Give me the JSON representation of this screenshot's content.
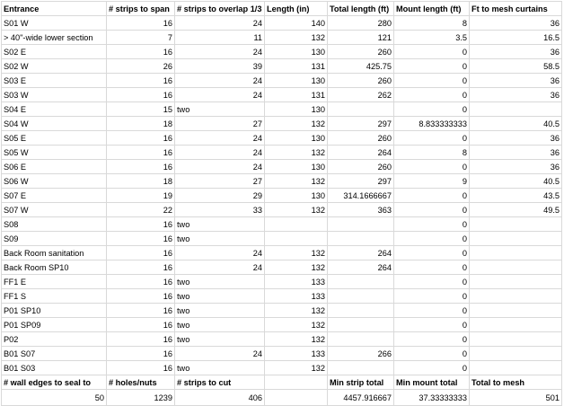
{
  "sheet": {
    "header": [
      "Entrance",
      "# strips to span",
      "# strips to overlap 1/3",
      "Length (in)",
      "Total length (ft)",
      "Mount length (ft)",
      "Ft to mesh curtains"
    ],
    "rows": [
      [
        "S01 W",
        "16",
        "24",
        "140",
        "280",
        "8",
        "36"
      ],
      [
        "> 40\"-wide lower section",
        "7",
        "11",
        "132",
        "121",
        "3.5",
        "16.5"
      ],
      [
        "S02 E",
        "16",
        "24",
        "130",
        "260",
        "0",
        "36"
      ],
      [
        "S02 W",
        "26",
        "39",
        "131",
        "425.75",
        "0",
        "58.5"
      ],
      [
        "S03 E",
        "16",
        "24",
        "130",
        "260",
        "0",
        "36"
      ],
      [
        "S03 W",
        "16",
        "24",
        "131",
        "262",
        "0",
        "36"
      ],
      [
        "S04 E",
        "15",
        "two",
        "130",
        "",
        "0",
        ""
      ],
      [
        "S04 W",
        "18",
        "27",
        "132",
        "297",
        "8.833333333",
        "40.5"
      ],
      [
        "S05 E",
        "16",
        "24",
        "130",
        "260",
        "0",
        "36"
      ],
      [
        "S05 W",
        "16",
        "24",
        "132",
        "264",
        "8",
        "36"
      ],
      [
        "S06 E",
        "16",
        "24",
        "130",
        "260",
        "0",
        "36"
      ],
      [
        "S06 W",
        "18",
        "27",
        "132",
        "297",
        "9",
        "40.5"
      ],
      [
        "S07 E",
        "19",
        "29",
        "130",
        "314.1666667",
        "0",
        "43.5"
      ],
      [
        "S07 W",
        "22",
        "33",
        "132",
        "363",
        "0",
        "49.5"
      ],
      [
        "S08",
        "16",
        "two",
        "",
        "",
        "0",
        ""
      ],
      [
        "S09",
        "16",
        "two",
        "",
        "",
        "0",
        ""
      ],
      [
        "Back Room sanitation",
        "16",
        "24",
        "132",
        "264",
        "0",
        ""
      ],
      [
        "Back Room SP10",
        "16",
        "24",
        "132",
        "264",
        "0",
        ""
      ],
      [
        "FF1 E",
        "16",
        "two",
        "133",
        "",
        "0",
        ""
      ],
      [
        "FF1 S",
        "16",
        "two",
        "133",
        "",
        "0",
        ""
      ],
      [
        "P01 SP10",
        "16",
        "two",
        "132",
        "",
        "0",
        ""
      ],
      [
        "P01 SP09",
        "16",
        "two",
        "132",
        "",
        "0",
        ""
      ],
      [
        "P02",
        "16",
        "two",
        "132",
        "",
        "0",
        ""
      ],
      [
        "B01 S07",
        "16",
        "24",
        "133",
        "266",
        "0",
        ""
      ],
      [
        "B01 S03",
        "16",
        "two",
        "132",
        "",
        "0",
        ""
      ]
    ],
    "footer_labels": [
      "# wall edges to seal to",
      "# holes/nuts",
      "# strips to cut",
      "",
      "Min strip total",
      "Min mount total",
      "Total to mesh"
    ],
    "footer_values": [
      "50",
      "1239",
      "406",
      "",
      "4457.916667",
      "37.33333333",
      "501"
    ]
  }
}
